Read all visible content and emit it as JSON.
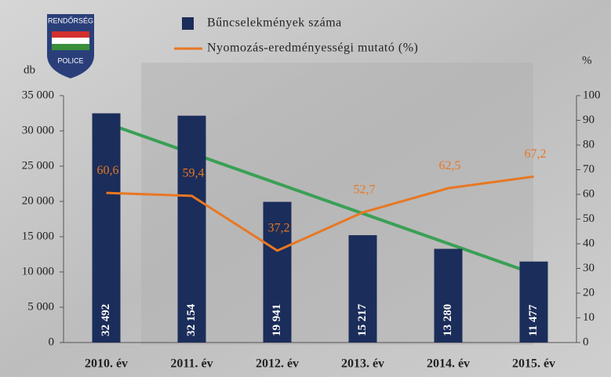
{
  "chart_data": {
    "type": "bar_line",
    "categories": [
      "2010. év",
      "2011. év",
      "2012. év",
      "2013. év",
      "2014. év",
      "2015. év"
    ],
    "series": [
      {
        "name": "Bűncselekmények száma",
        "color": "#1b2d5a",
        "type": "bar",
        "values": [
          32492,
          32154,
          19941,
          15217,
          13280,
          11477
        ],
        "value_labels": [
          "32 492",
          "32 154",
          "19 941",
          "15 217",
          "13 280",
          "11 477"
        ]
      },
      {
        "name": "Nyomozás-eredményességi mutató (%)",
        "color": "#e87722",
        "type": "line",
        "axis": "y2",
        "values": [
          60.6,
          59.4,
          37.2,
          52.7,
          62.5,
          67.2
        ],
        "value_labels": [
          "60,6",
          "59,4",
          "37,2",
          "52,7",
          "62,5",
          "67,2"
        ]
      }
    ],
    "ylabel": "db",
    "y2label": "%",
    "ylim": [
      0,
      35000
    ],
    "yticks": [
      0,
      {
        "value": 5000,
        "label": "5 000"
      },
      {
        "value": 10000,
        "label": "10 000"
      },
      {
        "value": 15000,
        "label": "15 000"
      },
      {
        "value": 20000,
        "label": "20 000"
      },
      {
        "value": 25000,
        "label": "25 000"
      },
      {
        "value": 30000,
        "label": "30 000"
      },
      {
        "value": 35000,
        "label": "35 000"
      }
    ],
    "y2lim": [
      0,
      100
    ],
    "y2ticks": [
      0,
      10,
      20,
      30,
      40,
      50,
      60,
      70,
      80,
      90,
      100
    ],
    "logo_text": [
      "RENDŐRSÉG",
      "POLICE"
    ]
  }
}
